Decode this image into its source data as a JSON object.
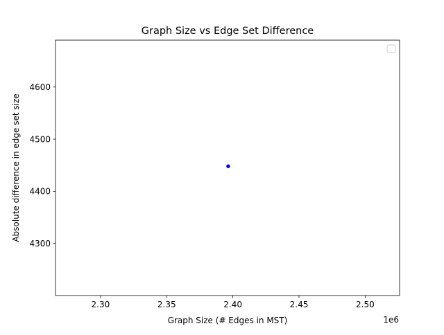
{
  "chart_data": {
    "type": "scatter",
    "title": "Graph Size vs Edge Set Difference",
    "xlabel": "Graph Size (# Edges in MST)",
    "ylabel": "Absolute difference in edge set size",
    "x_offset_label": "1e6",
    "xlim": [
      2266000,
      2526000
    ],
    "ylim": [
      4200,
      4690
    ],
    "x_ticks": [
      2300000,
      2350000,
      2400000,
      2450000,
      2500000
    ],
    "x_tick_labels": [
      "2.30",
      "2.35",
      "2.40",
      "2.45",
      "2.50"
    ],
    "y_ticks": [
      4300,
      4400,
      4500,
      4600
    ],
    "y_tick_labels": [
      "4300",
      "4400",
      "4500",
      "4600"
    ],
    "grid": false,
    "legend": {
      "placement": "top-right",
      "entries": []
    },
    "series": [
      {
        "color": "#0000ff",
        "marker": "circle",
        "points": [
          {
            "x": 2396500,
            "y": 4448
          }
        ]
      }
    ]
  }
}
